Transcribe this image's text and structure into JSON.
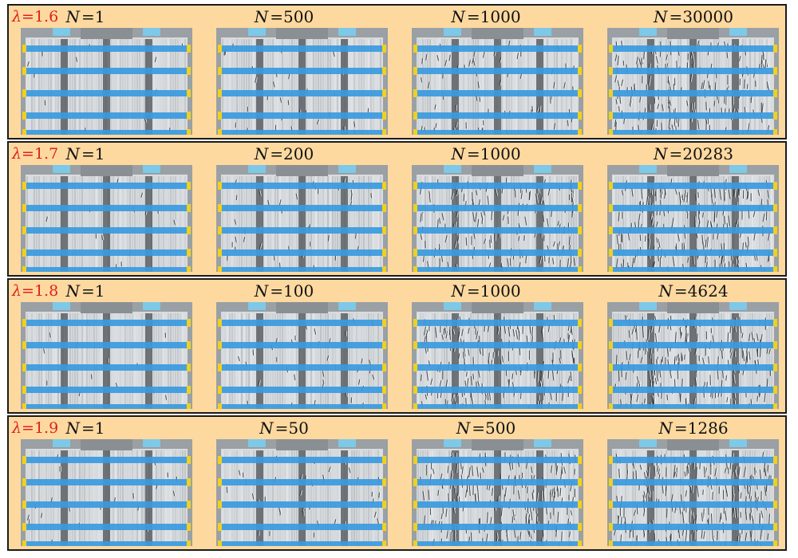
{
  "colors": {
    "panel_bg": "#fdd9a0",
    "panel_border": "#1a1a1a",
    "lambda_text": "#e0201b",
    "tape": "#3a9ae0",
    "clip": "#7ec8e8",
    "marker": "#f0d020"
  },
  "n_symbol": "N",
  "lambda_symbol": "λ",
  "rows": [
    {
      "lambda_value": "=1.6",
      "cells": [
        {
          "n_value": "=1",
          "damage_level": 0.05
        },
        {
          "n_value": "=500",
          "damage_level": 0.12
        },
        {
          "n_value": "=1000",
          "damage_level": 0.25
        },
        {
          "n_value": "=30000",
          "damage_level": 0.7
        }
      ]
    },
    {
      "lambda_value": "=1.7",
      "cells": [
        {
          "n_value": "=1",
          "damage_level": 0.05
        },
        {
          "n_value": "=200",
          "damage_level": 0.15
        },
        {
          "n_value": "=1000",
          "damage_level": 0.6
        },
        {
          "n_value": "=20283",
          "damage_level": 0.8
        }
      ]
    },
    {
      "lambda_value": "=1.8",
      "cells": [
        {
          "n_value": "=1",
          "damage_level": 0.05
        },
        {
          "n_value": "=100",
          "damage_level": 0.15
        },
        {
          "n_value": "=1000",
          "damage_level": 0.75
        },
        {
          "n_value": "=4624",
          "damage_level": 0.85
        }
      ]
    },
    {
      "lambda_value": "=1.9",
      "cells": [
        {
          "n_value": "=1",
          "damage_level": 0.08
        },
        {
          "n_value": "=50",
          "damage_level": 0.15
        },
        {
          "n_value": "=500",
          "damage_level": 0.8
        },
        {
          "n_value": "=1286",
          "damage_level": 0.9
        }
      ]
    }
  ]
}
